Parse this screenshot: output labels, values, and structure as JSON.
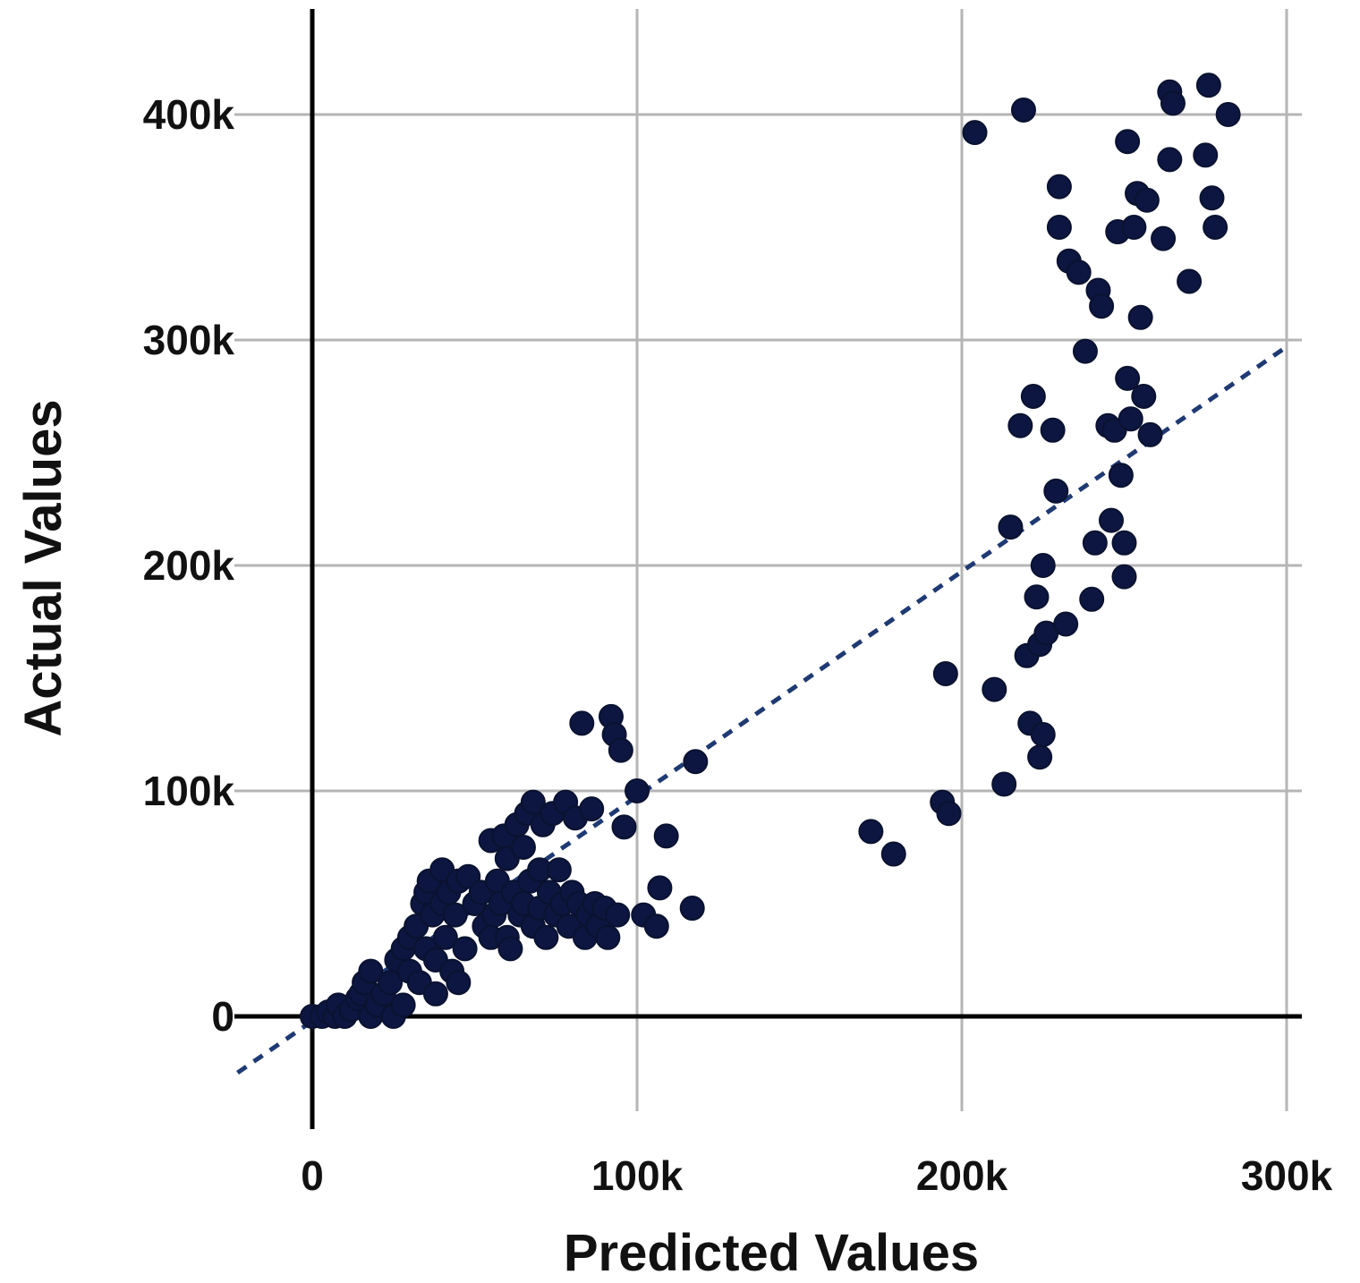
{
  "chart_data": {
    "type": "scatter",
    "title": "",
    "xlabel": "Predicted Values",
    "ylabel": "Actual Values",
    "xlim": [
      -25000,
      305000
    ],
    "ylim": [
      -50000,
      445000
    ],
    "xticks": [
      {
        "value": 0,
        "label": "0"
      },
      {
        "value": 100000,
        "label": "100k"
      },
      {
        "value": 200000,
        "label": "200k"
      },
      {
        "value": 300000,
        "label": "300k"
      }
    ],
    "yticks": [
      {
        "value": 0,
        "label": "0"
      },
      {
        "value": 100000,
        "label": "100k"
      },
      {
        "value": 200000,
        "label": "200k"
      },
      {
        "value": 300000,
        "label": "300k"
      },
      {
        "value": 400000,
        "label": "400k"
      }
    ],
    "grid": true,
    "colors": {
      "point": "#0d1640",
      "fit_line": "#1f3a73",
      "grid": "#b5b5b5",
      "axis": "#000000"
    },
    "reference_line": {
      "x": [
        -23000,
        300000
      ],
      "y": [
        -25000,
        297000
      ]
    },
    "points": [
      [
        0,
        0
      ],
      [
        3000,
        0
      ],
      [
        5000,
        2000
      ],
      [
        7000,
        0
      ],
      [
        8000,
        5000
      ],
      [
        10000,
        0
      ],
      [
        12000,
        3000
      ],
      [
        14000,
        8000
      ],
      [
        15000,
        10000
      ],
      [
        16000,
        15000
      ],
      [
        18000,
        20000
      ],
      [
        18000,
        0
      ],
      [
        20000,
        5000
      ],
      [
        22000,
        10000
      ],
      [
        24000,
        15000
      ],
      [
        25000,
        0
      ],
      [
        26000,
        25000
      ],
      [
        28000,
        30000
      ],
      [
        28000,
        5000
      ],
      [
        30000,
        20000
      ],
      [
        30000,
        35000
      ],
      [
        32000,
        40000
      ],
      [
        33000,
        15000
      ],
      [
        34000,
        50000
      ],
      [
        35000,
        55000
      ],
      [
        35000,
        30000
      ],
      [
        36000,
        60000
      ],
      [
        37000,
        45000
      ],
      [
        38000,
        10000
      ],
      [
        38000,
        25000
      ],
      [
        40000,
        50000
      ],
      [
        40000,
        65000
      ],
      [
        41000,
        35000
      ],
      [
        42000,
        55000
      ],
      [
        43000,
        20000
      ],
      [
        44000,
        45000
      ],
      [
        45000,
        15000
      ],
      [
        45000,
        60000
      ],
      [
        47000,
        30000
      ],
      [
        48000,
        62000
      ],
      [
        50000,
        50000
      ],
      [
        52000,
        55000
      ],
      [
        53000,
        40000
      ],
      [
        55000,
        78000
      ],
      [
        55000,
        35000
      ],
      [
        56000,
        45000
      ],
      [
        57000,
        60000
      ],
      [
        58000,
        50000
      ],
      [
        59000,
        80000
      ],
      [
        60000,
        35000
      ],
      [
        60000,
        70000
      ],
      [
        61000,
        30000
      ],
      [
        62000,
        55000
      ],
      [
        63000,
        85000
      ],
      [
        64000,
        45000
      ],
      [
        65000,
        75000
      ],
      [
        65000,
        50000
      ],
      [
        66000,
        90000
      ],
      [
        67000,
        60000
      ],
      [
        68000,
        40000
      ],
      [
        68000,
        95000
      ],
      [
        70000,
        65000
      ],
      [
        70000,
        48000
      ],
      [
        71000,
        85000
      ],
      [
        72000,
        35000
      ],
      [
        73000,
        55000
      ],
      [
        74000,
        90000
      ],
      [
        75000,
        45000
      ],
      [
        76000,
        65000
      ],
      [
        77000,
        50000
      ],
      [
        78000,
        95000
      ],
      [
        79000,
        40000
      ],
      [
        80000,
        55000
      ],
      [
        81000,
        88000
      ],
      [
        82000,
        50000
      ],
      [
        83000,
        130000
      ],
      [
        84000,
        35000
      ],
      [
        85000,
        45000
      ],
      [
        86000,
        92000
      ],
      [
        87000,
        50000
      ],
      [
        88000,
        40000
      ],
      [
        90000,
        48000
      ],
      [
        91000,
        35000
      ],
      [
        92000,
        133000
      ],
      [
        93000,
        125000
      ],
      [
        94000,
        45000
      ],
      [
        95000,
        118000
      ],
      [
        96000,
        84000
      ],
      [
        100000,
        100000
      ],
      [
        102000,
        45000
      ],
      [
        106000,
        40000
      ],
      [
        107000,
        57000
      ],
      [
        109000,
        80000
      ],
      [
        117000,
        48000
      ],
      [
        118000,
        113000
      ],
      [
        172000,
        82000
      ],
      [
        179000,
        72000
      ],
      [
        194000,
        95000
      ],
      [
        195000,
        152000
      ],
      [
        196000,
        90000
      ],
      [
        204000,
        392000
      ],
      [
        210000,
        145000
      ],
      [
        213000,
        103000
      ],
      [
        215000,
        217000
      ],
      [
        218000,
        262000
      ],
      [
        219000,
        402000
      ],
      [
        220000,
        160000
      ],
      [
        221000,
        130000
      ],
      [
        222000,
        275000
      ],
      [
        223000,
        186000
      ],
      [
        224000,
        115000
      ],
      [
        224000,
        165000
      ],
      [
        225000,
        200000
      ],
      [
        225000,
        125000
      ],
      [
        226000,
        170000
      ],
      [
        228000,
        260000
      ],
      [
        229000,
        233000
      ],
      [
        230000,
        368000
      ],
      [
        230000,
        350000
      ],
      [
        232000,
        174000
      ],
      [
        233000,
        335000
      ],
      [
        236000,
        330000
      ],
      [
        238000,
        295000
      ],
      [
        240000,
        185000
      ],
      [
        241000,
        210000
      ],
      [
        242000,
        322000
      ],
      [
        243000,
        315000
      ],
      [
        245000,
        262000
      ],
      [
        246000,
        220000
      ],
      [
        247000,
        260000
      ],
      [
        248000,
        348000
      ],
      [
        249000,
        240000
      ],
      [
        250000,
        195000
      ],
      [
        250000,
        210000
      ],
      [
        251000,
        283000
      ],
      [
        251000,
        388000
      ],
      [
        252000,
        265000
      ],
      [
        253000,
        350000
      ],
      [
        254000,
        365000
      ],
      [
        255000,
        310000
      ],
      [
        256000,
        275000
      ],
      [
        257000,
        362000
      ],
      [
        258000,
        258000
      ],
      [
        262000,
        345000
      ],
      [
        264000,
        380000
      ],
      [
        264000,
        410000
      ],
      [
        265000,
        405000
      ],
      [
        270000,
        326000
      ],
      [
        275000,
        382000
      ],
      [
        276000,
        413000
      ],
      [
        277000,
        363000
      ],
      [
        278000,
        350000
      ],
      [
        282000,
        400000
      ]
    ]
  }
}
